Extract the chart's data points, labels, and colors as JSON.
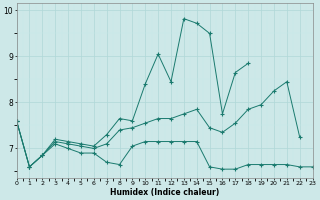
{
  "title": "",
  "xlabel": "Humidex (Indice chaleur)",
  "bg_color": "#cde8e8",
  "line_color": "#1a7a6e",
  "grid_color_major": "#b0d8d8",
  "grid_color_minor": "#c8e8e8",
  "x_values": [
    0,
    1,
    2,
    3,
    4,
    5,
    6,
    7,
    8,
    9,
    10,
    11,
    12,
    13,
    14,
    15,
    16,
    17,
    18,
    19,
    20,
    21,
    22,
    23
  ],
  "y_top": [
    7.6,
    6.6,
    6.85,
    7.2,
    7.15,
    7.1,
    7.05,
    7.3,
    7.65,
    7.6,
    8.4,
    9.05,
    8.45,
    9.82,
    9.72,
    9.5,
    7.75,
    8.65,
    8.85,
    null,
    null,
    null,
    null,
    null
  ],
  "y_mid": [
    7.6,
    6.6,
    6.85,
    7.15,
    7.1,
    7.05,
    7.0,
    7.1,
    7.4,
    7.45,
    7.55,
    7.65,
    7.65,
    7.75,
    7.85,
    7.45,
    7.35,
    7.55,
    7.85,
    7.95,
    8.25,
    8.45,
    7.25,
    null
  ],
  "y_bot": [
    7.6,
    6.6,
    6.85,
    7.1,
    7.0,
    6.9,
    6.9,
    6.7,
    6.65,
    7.05,
    7.15,
    7.15,
    7.15,
    7.15,
    7.15,
    6.6,
    6.55,
    6.55,
    6.65,
    6.65,
    6.65,
    6.65,
    6.6,
    6.6
  ],
  "ylim": [
    6.35,
    10.15
  ],
  "xlim": [
    0,
    23
  ],
  "yticks": [
    7,
    8,
    9,
    10
  ],
  "xticks": [
    0,
    1,
    2,
    3,
    4,
    5,
    6,
    7,
    8,
    9,
    10,
    11,
    12,
    13,
    14,
    15,
    16,
    17,
    18,
    19,
    20,
    21,
    22,
    23
  ]
}
